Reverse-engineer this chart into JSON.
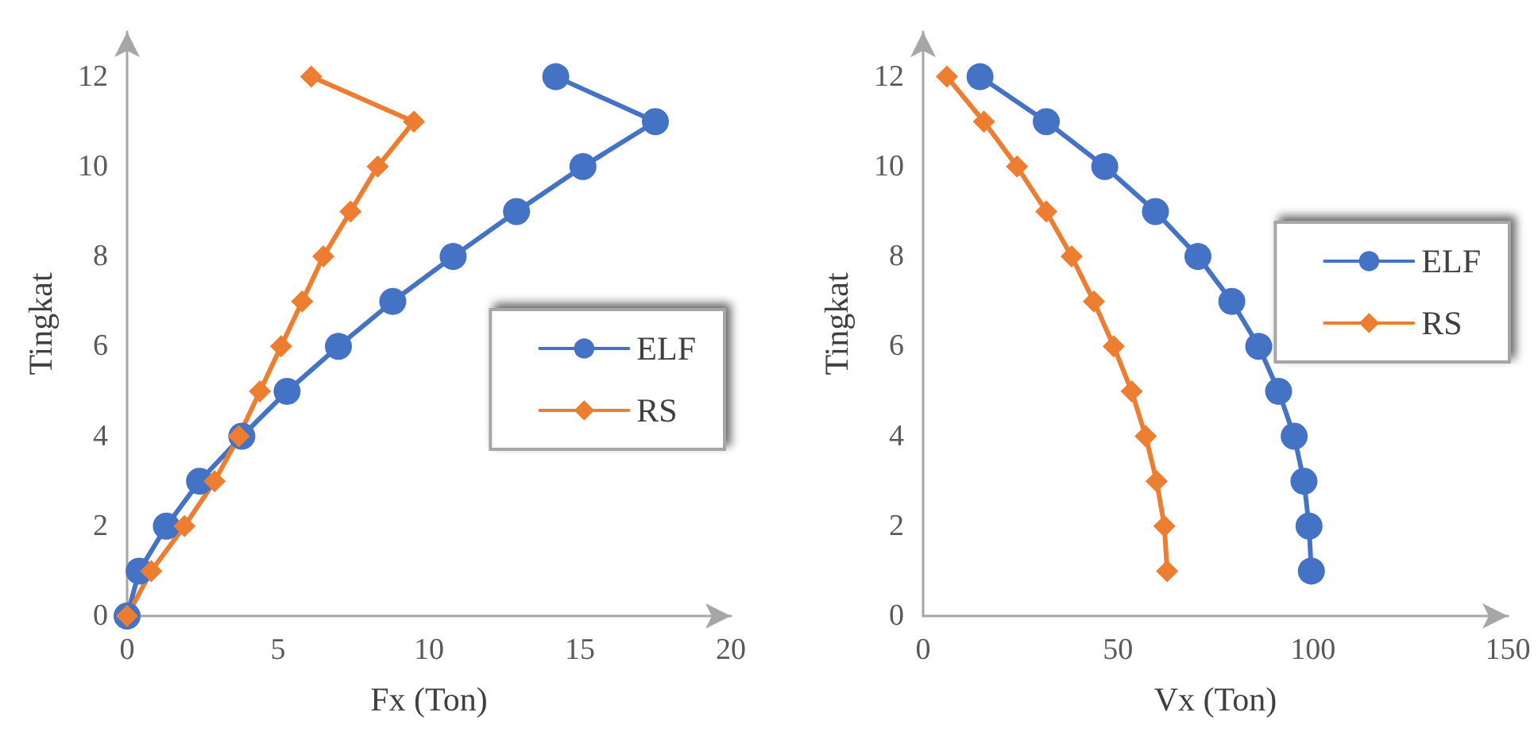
{
  "chart_data": [
    {
      "type": "line",
      "xlabel": "Fx (Ton)",
      "ylabel": "Tingkat",
      "xlim": [
        0,
        20
      ],
      "xticks": [
        0,
        5,
        10,
        15,
        20
      ],
      "ylim": [
        0,
        13
      ],
      "yticks": [
        0,
        2,
        4,
        6,
        8,
        10,
        12
      ],
      "grid": false,
      "legend": "right",
      "line_style": "solid",
      "series": [
        {
          "name": "ELF",
          "color": "#4472c4",
          "marker": "circle",
          "x": [
            0,
            0.4,
            1.3,
            2.4,
            3.8,
            5.3,
            7.0,
            8.8,
            10.8,
            12.9,
            15.1,
            17.5,
            14.2
          ],
          "values": [
            0,
            1,
            2,
            3,
            4,
            5,
            6,
            7,
            8,
            9,
            10,
            11,
            12
          ]
        },
        {
          "name": "RS",
          "color": "#ed7d31",
          "marker": "diamond",
          "x": [
            0,
            0.8,
            1.9,
            2.9,
            3.7,
            4.4,
            5.1,
            5.8,
            6.5,
            7.4,
            8.3,
            9.5,
            6.1
          ],
          "values": [
            0,
            1,
            2,
            3,
            4,
            5,
            6,
            7,
            8,
            9,
            10,
            11,
            12
          ]
        }
      ]
    },
    {
      "type": "line",
      "xlabel": "Vx (Ton)",
      "ylabel": "Tingkat",
      "xlim": [
        0,
        150
      ],
      "xticks": [
        0,
        50,
        100,
        150
      ],
      "ylim": [
        0,
        13
      ],
      "yticks": [
        0,
        2,
        4,
        6,
        8,
        10,
        12
      ],
      "grid": false,
      "legend": "right",
      "line_style": "solid",
      "series": [
        {
          "name": "ELF",
          "color": "#4472c4",
          "marker": "circle",
          "x": [
            99.6,
            99.0,
            97.7,
            95.2,
            91.2,
            86.1,
            79.2,
            70.5,
            59.6,
            46.6,
            31.6,
            14.6
          ],
          "values": [
            1,
            2,
            3,
            4,
            5,
            6,
            7,
            8,
            9,
            10,
            11,
            12
          ]
        },
        {
          "name": "RS",
          "color": "#ed7d31",
          "marker": "diamond",
          "x": [
            62.6,
            61.9,
            59.9,
            57.1,
            53.5,
            48.9,
            43.8,
            38.1,
            31.6,
            24.1,
            15.6,
            6.1
          ],
          "values": [
            1,
            2,
            3,
            4,
            5,
            6,
            7,
            8,
            9,
            10,
            11,
            12
          ]
        }
      ]
    }
  ]
}
